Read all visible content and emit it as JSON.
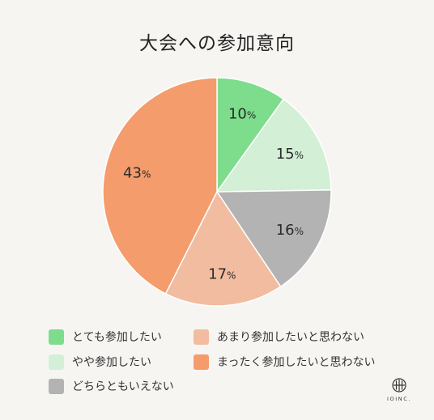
{
  "chart_data": {
    "type": "pie",
    "title": "大会への参加意向",
    "unit": "%",
    "categories": [
      "とても参加したい",
      "やや参加したい",
      "どちらともいえない",
      "あまり参加したいと思わない",
      "まったく参加したいと思わない"
    ],
    "values": [
      10,
      15,
      16,
      17,
      43
    ],
    "colors": [
      "#7ddd8c",
      "#d3efd6",
      "#b3b3b3",
      "#f1bca0",
      "#f49c6b"
    ],
    "start_angle": "12 o'clock",
    "direction": "clockwise",
    "legend_position": "bottom"
  },
  "brand": {
    "name": "IOINC."
  }
}
